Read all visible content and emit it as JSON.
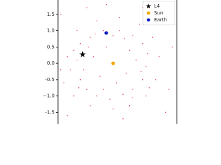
{
  "chart_data": {
    "type": "scatter",
    "xlim": [
      -1.68,
      1.94
    ],
    "ylim": [
      -1.85,
      1.94
    ],
    "yticks": [
      -1.5,
      {
        "value": -1,
        "label": "−1.0"
      },
      -0.5,
      {
        "value": 0,
        "label": "0.0"
      },
      0.5,
      {
        "value": 1,
        "label": "1.0"
      },
      1.5
    ],
    "legend": "upper right",
    "series": [
      {
        "color": "#e0303a",
        "marker": "dot",
        "x": [
          -1.2,
          -1.1,
          -1.3,
          -1.0,
          -0.8,
          -0.5,
          -0.1,
          0.3,
          0.6,
          0.9,
          1.0,
          1.05,
          0.9,
          0.6,
          0.2,
          -0.3,
          -0.7,
          -1.0,
          -1.4,
          -1.5,
          -1.2,
          -0.7,
          0.0,
          0.5,
          1.0,
          1.3,
          1.4,
          1.2,
          0.8,
          0.2,
          -0.5,
          -1.1,
          -0.6,
          -0.4,
          0.4,
          0.5,
          -0.2,
          0.1,
          -1.6,
          1.5,
          0.9,
          -0.8,
          1.6,
          -1.4,
          0.3,
          -0.2,
          1.8,
          1.7,
          -1.6,
          0.7,
          -0.9,
          -0.3,
          0.35,
          0.85,
          -0.75,
          1.1,
          -1.05,
          0.0,
          -0.55,
          0.6
        ],
        "y": [
          0.4,
          0.1,
          -0.2,
          -0.5,
          -0.8,
          -1.0,
          -1.1,
          -0.95,
          -0.8,
          -0.5,
          -0.1,
          0.3,
          0.6,
          0.85,
          1.0,
          1.0,
          0.8,
          0.6,
          0.2,
          -0.6,
          -1.0,
          -1.3,
          -1.4,
          -1.3,
          -1.0,
          -0.5,
          0.2,
          0.8,
          1.2,
          1.4,
          1.3,
          1.0,
          0.2,
          -0.4,
          -0.3,
          0.4,
          0.5,
          -0.6,
          1.5,
          1.6,
          1.7,
          1.7,
          -1.5,
          -1.6,
          -1.7,
          1.8,
          0.5,
          -0.8,
          -0.2,
          0.1,
          -0.2,
          -0.8,
          0.75,
          -0.25,
          0.5,
          -0.75,
          -0.75,
          0.85,
          0.9,
          -1.05
        ]
      },
      {
        "name": "L4",
        "color": "#000000",
        "marker": "star",
        "x": [
          -0.93
        ],
        "y": [
          0.27
        ]
      },
      {
        "name": "Sun",
        "color": "#f0a800",
        "marker": "circle",
        "x": [
          0
        ],
        "y": [
          0
        ]
      },
      {
        "name": "Earth",
        "color": "#1020c0",
        "marker": "circle",
        "x": [
          -0.21
        ],
        "y": [
          0.93
        ]
      }
    ]
  }
}
